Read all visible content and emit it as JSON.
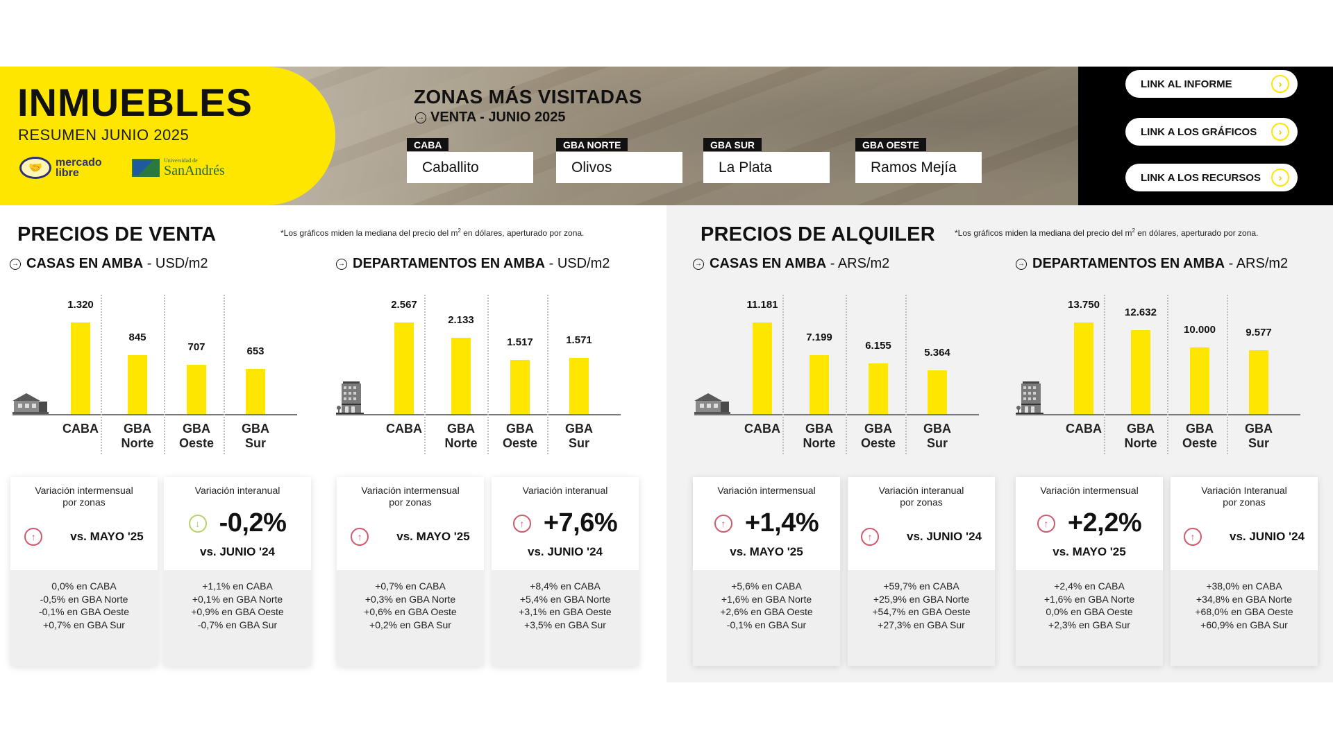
{
  "header": {
    "title": "INMUEBLES",
    "subtitle": "RESUMEN JUNIO 2025",
    "logos": {
      "mercado_libre": [
        "mercado",
        "libre"
      ],
      "san_andres_small": "Universidad de",
      "san_andres_big": "SanAndrés"
    },
    "zonas": {
      "title": "ZONAS MÁS VISITADAS",
      "subtitle": "VENTA - JUNIO 2025",
      "items": [
        {
          "tag": "CABA",
          "value": "Caballito"
        },
        {
          "tag": "GBA NORTE",
          "value": "Olivos"
        },
        {
          "tag": "GBA SUR",
          "value": "La Plata"
        },
        {
          "tag": "GBA OESTE",
          "value": "Ramos Mejía"
        }
      ]
    },
    "links": [
      {
        "label": "LINK AL INFORME"
      },
      {
        "label": "LINK A LOS GRÁFICOS"
      },
      {
        "label": "LINK A LOS RECURSOS"
      }
    ],
    "colors": {
      "brand_yellow": "#ffe600",
      "links_bg": "#000000"
    }
  },
  "venta": {
    "title": "PRECIOS DE VENTA",
    "footnote_pre": "*Los gráficos miden la mediana del precio del m",
    "footnote_sup": "2",
    "footnote_post": " en dólares, aperturado por zona.",
    "casas": {
      "title": "CASAS EN AMBA",
      "unit": " - USD/m2"
    },
    "deptos": {
      "title": "DEPARTAMENTOS EN AMBA",
      "unit": " - USD/m2"
    },
    "cards": [
      {
        "head": "Variación intermensual por zonas",
        "vs": "vs. MAYO '25",
        "trend": "up",
        "lines": [
          "0,0% en CABA",
          "-0,5% en GBA Norte",
          "-0,1% en GBA Oeste",
          "+0,7% en GBA Sur"
        ]
      },
      {
        "head": "Variación interanual",
        "big": "-0,2%",
        "vs": "vs. JUNIO '24",
        "trend": "down",
        "lines": [
          "+1,1% en CABA",
          "+0,1% en GBA Norte",
          "+0,9% en GBA Oeste",
          "-0,7% en GBA Sur"
        ]
      },
      {
        "head": "Variación intermensual por zonas",
        "vs": "vs. MAYO '25",
        "trend": "up",
        "lines": [
          "+0,7% en CABA",
          "+0,3% en GBA Norte",
          "+0,6% en GBA Oeste",
          "+0,2% en GBA Sur"
        ]
      },
      {
        "head": "Variación interanual",
        "big": "+7,6%",
        "vs": "vs. JUNIO '24",
        "trend": "up",
        "lines": [
          "+8,4% en CABA",
          "+5,4% en GBA Norte",
          "+3,1% en GBA Oeste",
          "+3,5% en GBA Sur"
        ]
      }
    ]
  },
  "alquiler": {
    "title": "PRECIOS DE ALQUILER",
    "footnote_pre": "*Los gráficos miden la mediana del precio del m",
    "footnote_sup": "2",
    "footnote_post": " en dólares, aperturado por zona.",
    "casas": {
      "title": "CASAS EN AMBA",
      "unit": " - ARS/m2"
    },
    "deptos": {
      "title": "DEPARTAMENTOS EN AMBA",
      "unit": " - ARS/m2"
    },
    "cards": [
      {
        "head": "Variación intermensual",
        "big": "+1,4%",
        "vs": "vs. MAYO '25",
        "trend": "up",
        "lines": [
          "+5,6% en CABA",
          "+1,6% en GBA Norte",
          "+2,6% en GBA Oeste",
          "-0,1% en GBA Sur"
        ]
      },
      {
        "head": "Variación interanual por zonas",
        "vs": "vs. JUNIO '24",
        "trend": "up",
        "lines": [
          "+59,7% en CABA",
          "+25,9% en GBA Norte",
          "+54,7% en GBA Oeste",
          "+27,3% en GBA Sur"
        ]
      },
      {
        "head": "Variación intermensual",
        "big": "+2,2%",
        "vs": "vs. MAYO '25",
        "trend": "up",
        "lines": [
          "+2,4% en CABA",
          "+1,6% en GBA Norte",
          "0,0% en GBA Oeste",
          "+2,3% en GBA Sur"
        ]
      },
      {
        "head": "Variación Interanual por zonas",
        "vs": "vs. JUNIO '24",
        "trend": "up",
        "lines": [
          "+38,0% en CABA",
          "+34,8% en GBA Norte",
          "+68,0% en GBA Oeste",
          "+60,9% en GBA Sur"
        ]
      }
    ]
  },
  "chart_data": [
    {
      "type": "bar",
      "title": "CASAS EN AMBA - USD/m2 (Precios de venta)",
      "categories": [
        "CABA",
        "GBA Norte",
        "GBA Oeste",
        "GBA Sur"
      ],
      "values": [
        1320,
        845,
        707,
        653
      ],
      "labels": [
        "1.320",
        "845",
        "707",
        "653"
      ],
      "xlabel": "",
      "ylabel": "USD/m2",
      "grid": false,
      "icon": "house"
    },
    {
      "type": "bar",
      "title": "DEPARTAMENTOS EN AMBA - USD/m2 (Precios de venta)",
      "categories": [
        "CABA",
        "GBA Norte",
        "GBA Oeste",
        "GBA Sur"
      ],
      "values": [
        2567,
        2133,
        1517,
        1571
      ],
      "labels": [
        "2.567",
        "2.133",
        "1.517",
        "1.571"
      ],
      "xlabel": "",
      "ylabel": "USD/m2",
      "grid": false,
      "icon": "building"
    },
    {
      "type": "bar",
      "title": "CASAS EN AMBA - ARS/m2 (Precios de alquiler)",
      "categories": [
        "CABA",
        "GBA Norte",
        "GBA Oeste",
        "GBA Sur"
      ],
      "values": [
        11181,
        7199,
        6155,
        5364
      ],
      "labels": [
        "11.181",
        "7.199",
        "6.155",
        "5.364"
      ],
      "xlabel": "",
      "ylabel": "ARS/m2",
      "grid": false,
      "icon": "house"
    },
    {
      "type": "bar",
      "title": "DEPARTAMENTOS EN AMBA - ARS/m2 (Precios de alquiler)",
      "categories": [
        "CABA",
        "GBA Norte",
        "GBA Oeste",
        "GBA Sur"
      ],
      "values": [
        13750,
        12632,
        10000,
        9577
      ],
      "labels": [
        "13.750",
        "12.632",
        "10.000",
        "9.577"
      ],
      "xlabel": "",
      "ylabel": "ARS/m2",
      "grid": false,
      "icon": "building"
    }
  ],
  "category_lines": [
    [
      "CABA",
      ""
    ],
    [
      "GBA",
      "Norte"
    ],
    [
      "GBA",
      "Oeste"
    ],
    [
      "GBA",
      "Sur"
    ]
  ]
}
